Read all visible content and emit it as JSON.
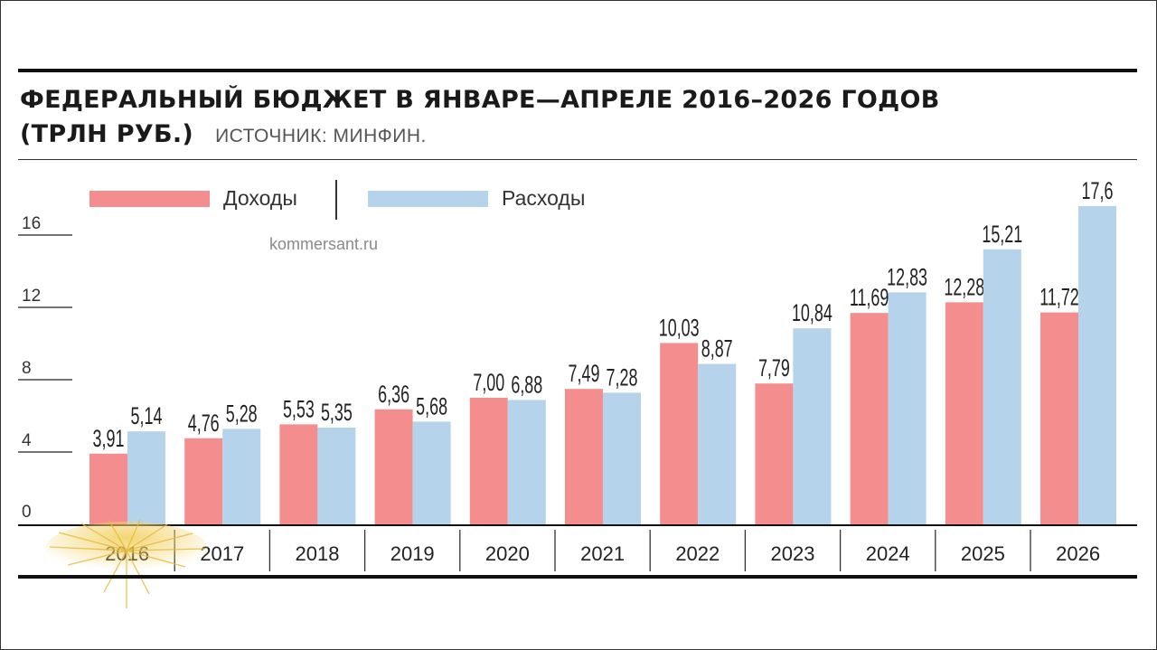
{
  "header": {
    "title_line1": "ФЕДЕРАЛЬНЫЙ БЮДЖЕТ В ЯНВАРЕ—АПРЕЛЕ 2016–2026 ГОДОВ",
    "title_line2": "(ТРЛН РУБ.)",
    "source": "ИСТОЧНИК: МИНФИН."
  },
  "credit": "kommersant.ru",
  "colors": {
    "income": "#f48e8e",
    "expense": "#b5d3ea",
    "rule": "#111111"
  },
  "chart_data": {
    "type": "bar",
    "categories": [
      "2016",
      "2017",
      "2018",
      "2019",
      "2020",
      "2021",
      "2022",
      "2023",
      "2024",
      "2025",
      "2026"
    ],
    "series": [
      {
        "name": "Доходы",
        "values": [
          3.91,
          4.76,
          5.53,
          6.36,
          7.0,
          7.49,
          10.03,
          7.79,
          11.69,
          12.28,
          11.72
        ],
        "labels": [
          "3,91",
          "4,76",
          "5,53",
          "6,36",
          "7,00",
          "7,49",
          "10,03",
          "7,79",
          "11,69",
          "12,28",
          "11,72"
        ]
      },
      {
        "name": "Расходы",
        "values": [
          5.14,
          5.28,
          5.35,
          5.68,
          6.88,
          7.28,
          8.87,
          10.84,
          12.83,
          15.21,
          17.6
        ],
        "labels": [
          "5,14",
          "5,28",
          "5,35",
          "5,68",
          "6,88",
          "7,28",
          "8,87",
          "10,84",
          "12,83",
          "15,21",
          "17,6"
        ]
      }
    ],
    "yticks": [
      "0",
      "4",
      "8",
      "12",
      "16"
    ],
    "ylim": [
      0,
      18
    ],
    "legend": "top-left",
    "grid": false
  }
}
